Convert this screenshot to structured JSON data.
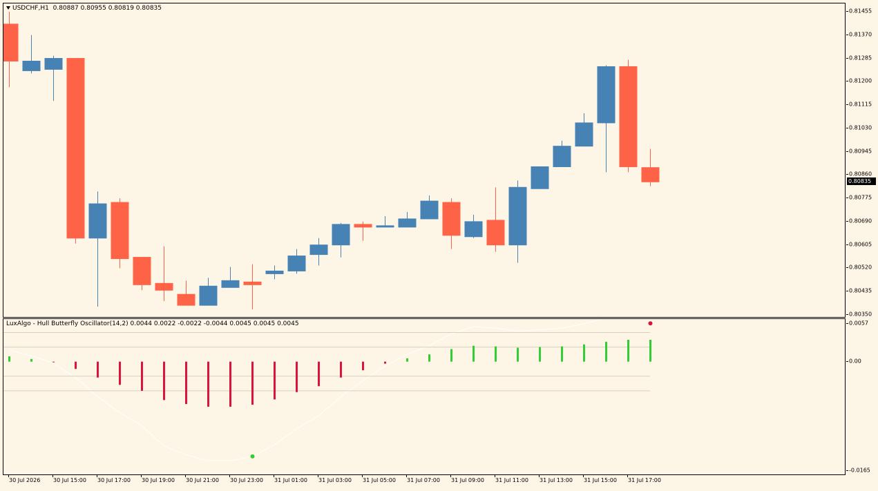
{
  "colors": {
    "background": "#fdf5e6",
    "bull_candle": "#4682b4",
    "bear_candle": "#ff6347",
    "osc_positive": "#32cd32",
    "osc_negative": "#dc143c",
    "current_price_bg": "#000000"
  },
  "main_header": {
    "symbol": "USDCHF,H1",
    "ohlc": "0.80887 0.80955 0.80819 0.80835"
  },
  "sub_header": {
    "text": "LuxAlgo - Hull Butterfly Oscillator(14,2) 0.0044 0.0022 -0.0022 -0.0044 0.0045 0.0045 0.0045"
  },
  "current_price": "0.80835",
  "price_axis_labels": [
    "0.81455",
    "0.81370",
    "0.81285",
    "0.81200",
    "0.81115",
    "0.81030",
    "0.80945",
    "0.80860",
    "0.80775",
    "0.80690",
    "0.80605",
    "0.80520",
    "0.80435",
    "0.80350"
  ],
  "osc_axis_labels": [
    "0.0057",
    "0.00",
    "-0.0165"
  ],
  "time_axis_labels": [
    "30 Jul 2026",
    "30 Jul 15:00",
    "30 Jul 17:00",
    "30 Jul 19:00",
    "30 Jul 21:00",
    "30 Jul 23:00",
    "31 Jul 01:00",
    "31 Jul 03:00",
    "31 Jul 05:00",
    "31 Jul 07:00",
    "31 Jul 09:00",
    "31 Jul 11:00",
    "31 Jul 13:00",
    "31 Jul 15:00",
    "31 Jul 17:00"
  ],
  "chart_data": [
    {
      "type": "candlestick",
      "symbol": "USDCHF",
      "timeframe": "H1",
      "ylim": [
        0.8035,
        0.8148
      ],
      "candles": [
        {
          "o": 0.8141,
          "h": 0.81455,
          "l": 0.8118,
          "c": 0.81275
        },
        {
          "o": 0.8124,
          "h": 0.8137,
          "l": 0.8123,
          "c": 0.81275
        },
        {
          "o": 0.81245,
          "h": 0.81295,
          "l": 0.8113,
          "c": 0.81285
        },
        {
          "o": 0.81285,
          "h": 0.81285,
          "l": 0.8061,
          "c": 0.8063
        },
        {
          "o": 0.8063,
          "h": 0.808,
          "l": 0.8038,
          "c": 0.80755
        },
        {
          "o": 0.8076,
          "h": 0.80775,
          "l": 0.8052,
          "c": 0.80555
        },
        {
          "o": 0.8056,
          "h": 0.8056,
          "l": 0.8044,
          "c": 0.8046
        },
        {
          "o": 0.80465,
          "h": 0.806,
          "l": 0.804,
          "c": 0.8044
        },
        {
          "o": 0.80425,
          "h": 0.80475,
          "l": 0.80385,
          "c": 0.80385
        },
        {
          "o": 0.80385,
          "h": 0.80485,
          "l": 0.80385,
          "c": 0.80455
        },
        {
          "o": 0.8045,
          "h": 0.80525,
          "l": 0.8045,
          "c": 0.80475
        },
        {
          "o": 0.8047,
          "h": 0.80535,
          "l": 0.8037,
          "c": 0.8046
        },
        {
          "o": 0.805,
          "h": 0.8053,
          "l": 0.8048,
          "c": 0.8051
        },
        {
          "o": 0.8051,
          "h": 0.8059,
          "l": 0.805,
          "c": 0.80565
        },
        {
          "o": 0.8057,
          "h": 0.8063,
          "l": 0.8053,
          "c": 0.80605
        },
        {
          "o": 0.80605,
          "h": 0.80685,
          "l": 0.8056,
          "c": 0.8068
        },
        {
          "o": 0.8068,
          "h": 0.8069,
          "l": 0.8062,
          "c": 0.8067
        },
        {
          "o": 0.8067,
          "h": 0.8071,
          "l": 0.8067,
          "c": 0.80675
        },
        {
          "o": 0.8067,
          "h": 0.80725,
          "l": 0.8067,
          "c": 0.807
        },
        {
          "o": 0.807,
          "h": 0.80785,
          "l": 0.807,
          "c": 0.80765
        },
        {
          "o": 0.8076,
          "h": 0.80775,
          "l": 0.8059,
          "c": 0.8064
        },
        {
          "o": 0.80635,
          "h": 0.80715,
          "l": 0.8063,
          "c": 0.8069
        },
        {
          "o": 0.80695,
          "h": 0.80815,
          "l": 0.8058,
          "c": 0.80605
        },
        {
          "o": 0.80605,
          "h": 0.8084,
          "l": 0.8054,
          "c": 0.80815
        },
        {
          "o": 0.8081,
          "h": 0.8089,
          "l": 0.8081,
          "c": 0.8089
        },
        {
          "o": 0.8089,
          "h": 0.80985,
          "l": 0.8089,
          "c": 0.80965
        },
        {
          "o": 0.80965,
          "h": 0.81085,
          "l": 0.80965,
          "c": 0.8105
        },
        {
          "o": 0.8105,
          "h": 0.8126,
          "l": 0.8087,
          "c": 0.81255
        },
        {
          "o": 0.81255,
          "h": 0.8128,
          "l": 0.8087,
          "c": 0.8089
        },
        {
          "o": 0.80887,
          "h": 0.80955,
          "l": 0.80819,
          "c": 0.80835
        }
      ]
    },
    {
      "type": "bar",
      "name": "Hull Butterfly Oscillator",
      "ylim": [
        -0.0165,
        0.0057
      ],
      "levels": [
        0.0044,
        0.0022,
        -0.0022,
        -0.0044
      ],
      "values": [
        0.0008,
        0.0004,
        -0.0001,
        -0.0011,
        -0.0024,
        -0.0035,
        -0.0044,
        -0.0058,
        -0.0064,
        -0.0068,
        -0.0068,
        -0.0065,
        -0.0057,
        -0.0046,
        -0.0037,
        -0.0024,
        -0.0013,
        -0.0003,
        0.0005,
        0.0011,
        0.0019,
        0.0024,
        0.0023,
        0.0021,
        0.0022,
        0.0023,
        0.0026,
        0.003,
        0.0033,
        0.0033
      ]
    }
  ]
}
